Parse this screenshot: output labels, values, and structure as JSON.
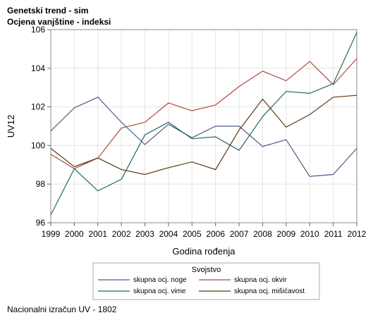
{
  "title": "Genetski trend - sim",
  "subtitle": "Ocjena vanjštine - indeksi",
  "footnote": "Nacionalni izračun UV - 1802",
  "chart_data": {
    "type": "line",
    "x": [
      1999,
      2000,
      2001,
      2002,
      2003,
      2004,
      2005,
      2006,
      2007,
      2008,
      2009,
      2010,
      2011,
      2012
    ],
    "xlabel": "Godina rođenja",
    "ylabel": "UV12",
    "ylim": [
      96,
      106
    ],
    "yticks": [
      96,
      98,
      100,
      102,
      104,
      106
    ],
    "grid": true,
    "legend_title": "Svojstvo",
    "legend_position": "bottom",
    "series": [
      {
        "name": "skupna ocj. noge",
        "color": "#4a5a8c",
        "values": [
          100.75,
          101.95,
          102.5,
          101.2,
          100.05,
          101.1,
          100.4,
          101.0,
          101.0,
          99.95,
          100.3,
          98.4,
          98.5,
          99.85
        ]
      },
      {
        "name": "skupna ocj. okvir",
        "color": "#b04a3c",
        "values": [
          99.55,
          98.8,
          99.35,
          100.9,
          101.2,
          102.2,
          101.8,
          102.1,
          103.05,
          103.85,
          103.35,
          104.35,
          103.15,
          104.5
        ]
      },
      {
        "name": "skupna ocj. vime",
        "color": "#1f6b5e",
        "values": [
          96.4,
          98.8,
          97.65,
          98.25,
          100.55,
          101.2,
          100.35,
          100.45,
          99.75,
          101.5,
          102.8,
          102.7,
          103.2,
          105.85
        ]
      },
      {
        "name": "skupna ocj. mišićavost",
        "color": "#5a3a14",
        "values": [
          99.85,
          98.9,
          99.35,
          98.75,
          98.5,
          98.85,
          99.15,
          98.75,
          100.8,
          102.4,
          100.95,
          101.6,
          102.5,
          102.6
        ]
      }
    ]
  }
}
